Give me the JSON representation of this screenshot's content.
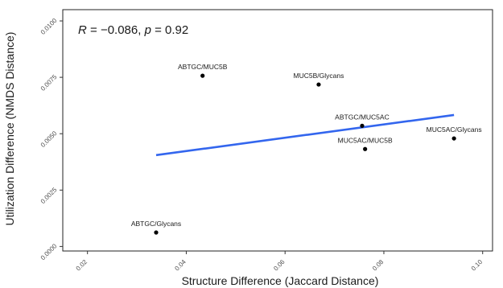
{
  "chart_data": {
    "type": "scatter",
    "xlabel": "Structure Difference (Jaccard Distance)",
    "ylabel": "Utilization Difference (NMDS Distance)",
    "xlim": [
      0.015,
      0.102
    ],
    "ylim": [
      -0.0002,
      0.0105
    ],
    "x_ticks": [
      0.02,
      0.04,
      0.06,
      0.08,
      0.1
    ],
    "x_tick_labels": [
      "0.02",
      "0.04",
      "0.06",
      "0.08",
      "0.10"
    ],
    "y_ticks": [
      0.0,
      0.0025,
      0.005,
      0.0075,
      0.01
    ],
    "y_tick_labels": [
      "0.0000",
      "0.0025",
      "0.0050",
      "0.0075",
      "0.0100"
    ],
    "grid": false,
    "annotation": {
      "r_label": "R",
      "r_value": " = −0.086, ",
      "p_label": "p",
      "p_value": " = 0.92"
    },
    "points": [
      {
        "label": "ABTGC/MUC5B",
        "x": 0.0433,
        "y": 0.00757
      },
      {
        "label": "MUC5B/Glycans",
        "x": 0.0668,
        "y": 0.00718
      },
      {
        "label": "ABTGC/MUC5AC",
        "x": 0.0756,
        "y": 0.00535
      },
      {
        "label": "MUC5AC/MUC5B",
        "x": 0.0762,
        "y": 0.00432
      },
      {
        "label": "MUC5AC/Glycans",
        "x": 0.0942,
        "y": 0.00479
      },
      {
        "label": "ABTGC/Glycans",
        "x": 0.0339,
        "y": 0.00062
      }
    ],
    "fit_line": {
      "x": [
        0.0339,
        0.0942
      ],
      "y": [
        0.00405,
        0.00583
      ],
      "color": "#3366ee"
    },
    "point_color": "#000000"
  }
}
